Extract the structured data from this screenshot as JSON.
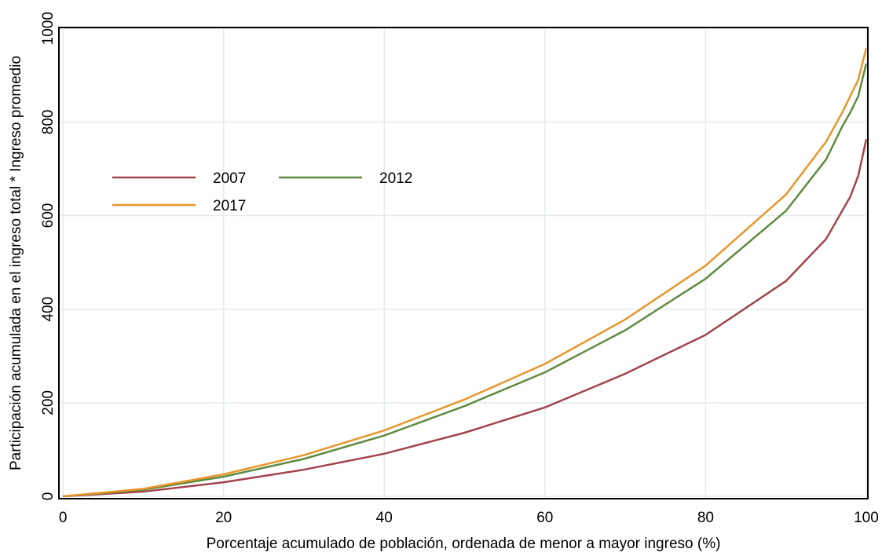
{
  "chart_data": {
    "type": "line",
    "xlabel": "Porcentaje acumulado de población, ordenada de menor a mayor ingreso (%)",
    "ylabel": "Participación acumulada en el ingreso total * Ingreso promedio",
    "x": [
      0,
      10,
      20,
      30,
      40,
      50,
      60,
      70,
      80,
      90,
      95,
      97,
      98,
      99,
      100
    ],
    "series": [
      {
        "name": "2007",
        "color": "#a3434d",
        "values": [
          0,
          10,
          30,
          57,
          91,
          136,
          190,
          262,
          345,
          460,
          550,
          610,
          640,
          685,
          763
        ]
      },
      {
        "name": "2012",
        "color": "#5f8a3f",
        "values": [
          0,
          14,
          42,
          80,
          130,
          193,
          265,
          355,
          465,
          610,
          720,
          790,
          820,
          855,
          925
        ]
      },
      {
        "name": "2017",
        "color": "#e8962a",
        "values": [
          0,
          16,
          47,
          88,
          141,
          207,
          283,
          378,
          493,
          645,
          758,
          820,
          855,
          890,
          958
        ]
      }
    ],
    "xlim": [
      -0.5,
      100.2
    ],
    "ylim": [
      -5,
      1002
    ],
    "xticks": [
      0,
      20,
      40,
      60,
      80,
      100
    ],
    "yticks": [
      0,
      200,
      400,
      600,
      800,
      1000
    ],
    "grid": true,
    "legend": "upper left"
  }
}
